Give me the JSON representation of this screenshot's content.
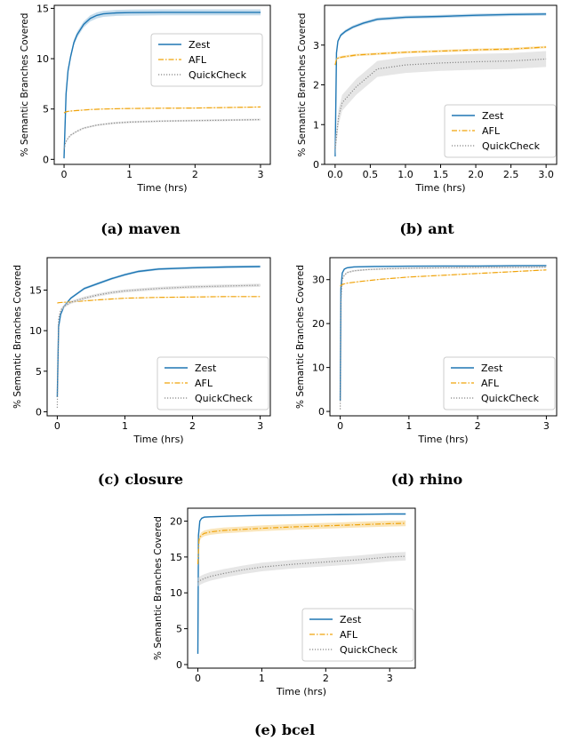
{
  "colors": {
    "zest": "#1f77b4",
    "afl": "#f0a30a",
    "quickcheck": "#888888",
    "band_zest": "#9ec4e0",
    "band_afl": "#f7d38a",
    "band_quickcheck": "#d6d6d6"
  },
  "chart_data": [
    {
      "type": "line",
      "caption": "(a) maven",
      "xlabel": "Time (hrs)",
      "ylabel": "% Semantic Branches Covered",
      "xlim": [
        -0.15,
        3.15
      ],
      "ylim": [
        -0.5,
        15.3
      ],
      "xticks": [
        0,
        1,
        2,
        3
      ],
      "xtick_labels": [
        "0",
        "1",
        "2",
        "3"
      ],
      "yticks": [
        0,
        5,
        10,
        15
      ],
      "ytick_labels": [
        "0",
        "5",
        "10",
        "15"
      ],
      "grid": false,
      "legend_position": "upper-right",
      "series": [
        {
          "name": "Zest",
          "style": "solid",
          "color_key": "zest",
          "x": [
            0,
            0.03,
            0.06,
            0.1,
            0.15,
            0.2,
            0.3,
            0.4,
            0.5,
            0.6,
            0.8,
            1.0,
            1.5,
            2.0,
            2.5,
            3.0
          ],
          "y": [
            0.1,
            6.5,
            8.8,
            10.2,
            11.6,
            12.4,
            13.4,
            14.0,
            14.3,
            14.45,
            14.55,
            14.58,
            14.6,
            14.6,
            14.6,
            14.6
          ],
          "band": 0.3
        },
        {
          "name": "AFL",
          "style": "dashdot",
          "color_key": "afl",
          "x": [
            0,
            0.02,
            0.05,
            0.1,
            0.2,
            0.4,
            0.6,
            1.0,
            1.5,
            2.0,
            2.5,
            3.0
          ],
          "y": [
            4.6,
            4.7,
            4.75,
            4.8,
            4.85,
            4.95,
            5.0,
            5.05,
            5.08,
            5.1,
            5.15,
            5.2
          ],
          "band": 0.05
        },
        {
          "name": "QuickCheck",
          "style": "dotted",
          "color_key": "quickcheck",
          "x": [
            0,
            0.02,
            0.05,
            0.1,
            0.2,
            0.3,
            0.5,
            0.75,
            1.0,
            1.5,
            2.0,
            2.5,
            3.0
          ],
          "y": [
            1.0,
            1.6,
            2.0,
            2.4,
            2.8,
            3.1,
            3.4,
            3.6,
            3.7,
            3.8,
            3.85,
            3.9,
            3.95
          ],
          "band": 0.1
        }
      ]
    },
    {
      "type": "line",
      "caption": "(b) ant",
      "xlabel": "Time (hrs)",
      "ylabel": "% Semantic Branches Covered",
      "xlim": [
        -0.15,
        3.15
      ],
      "ylim": [
        0,
        4.0
      ],
      "xticks": [
        0,
        0.5,
        1,
        1.5,
        2,
        2.5,
        3
      ],
      "xtick_labels": [
        "0.0",
        "0.5",
        "1.0",
        "1.5",
        "2.0",
        "2.5",
        "3.0"
      ],
      "yticks": [
        0,
        1,
        2,
        3
      ],
      "ytick_labels": [
        "0",
        "1",
        "2",
        "3"
      ],
      "grid": false,
      "legend_position": "lower-right",
      "series": [
        {
          "name": "Zest",
          "style": "solid",
          "color_key": "zest",
          "x": [
            0,
            0.02,
            0.04,
            0.08,
            0.15,
            0.25,
            0.4,
            0.6,
            1.0,
            1.5,
            2.0,
            2.5,
            3.0
          ],
          "y": [
            0.2,
            2.8,
            3.1,
            3.25,
            3.35,
            3.45,
            3.55,
            3.65,
            3.7,
            3.72,
            3.75,
            3.77,
            3.78
          ],
          "band": 0.04
        },
        {
          "name": "AFL",
          "style": "dashdot",
          "color_key": "afl",
          "x": [
            0,
            0.02,
            0.05,
            0.1,
            0.3,
            0.6,
            1.0,
            1.5,
            2.0,
            2.5,
            3.0
          ],
          "y": [
            2.5,
            2.65,
            2.68,
            2.7,
            2.75,
            2.78,
            2.82,
            2.85,
            2.88,
            2.9,
            2.95
          ],
          "band": 0.03
        },
        {
          "name": "QuickCheck",
          "style": "dotted",
          "color_key": "quickcheck",
          "x": [
            0,
            0.05,
            0.1,
            0.2,
            0.3,
            0.4,
            0.5,
            0.6,
            0.8,
            1.0,
            1.5,
            2.0,
            2.5,
            3.0
          ],
          "y": [
            0.4,
            1.2,
            1.55,
            1.75,
            1.95,
            2.1,
            2.25,
            2.4,
            2.45,
            2.5,
            2.55,
            2.58,
            2.6,
            2.65
          ],
          "band": 0.2
        }
      ]
    },
    {
      "type": "line",
      "caption": "(c) closure",
      "xlabel": "Time (hrs)",
      "ylabel": "% Semantic Branches Covered",
      "xlim": [
        -0.15,
        3.15
      ],
      "ylim": [
        -0.5,
        19
      ],
      "xticks": [
        0,
        1,
        2,
        3
      ],
      "xtick_labels": [
        "0",
        "1",
        "2",
        "3"
      ],
      "yticks": [
        0,
        5,
        10,
        15
      ],
      "ytick_labels": [
        "0",
        "5",
        "10",
        "15"
      ],
      "grid": false,
      "legend_position": "lower-right",
      "series": [
        {
          "name": "Zest",
          "style": "solid",
          "color_key": "zest",
          "x": [
            0,
            0.02,
            0.05,
            0.1,
            0.2,
            0.4,
            0.6,
            0.8,
            1.0,
            1.2,
            1.5,
            2.0,
            2.5,
            3.0
          ],
          "y": [
            1.8,
            10.5,
            12.0,
            13.0,
            14.0,
            15.2,
            15.8,
            16.4,
            16.9,
            17.3,
            17.6,
            17.75,
            17.85,
            17.9
          ],
          "band": 0.15
        },
        {
          "name": "AFL",
          "style": "dashdot",
          "color_key": "afl",
          "x": [
            0,
            0.02,
            0.1,
            0.3,
            0.6,
            1.0,
            1.5,
            2.0,
            2.5,
            3.0
          ],
          "y": [
            13.4,
            13.45,
            13.5,
            13.6,
            13.8,
            14.0,
            14.1,
            14.15,
            14.2,
            14.2
          ],
          "band": 0.05
        },
        {
          "name": "QuickCheck",
          "style": "dotted",
          "color_key": "quickcheck",
          "x": [
            0,
            0.02,
            0.05,
            0.1,
            0.2,
            0.4,
            0.6,
            0.8,
            1.0,
            1.5,
            2.0,
            2.5,
            3.0
          ],
          "y": [
            0.5,
            11.5,
            12.5,
            13.0,
            13.5,
            14.0,
            14.4,
            14.7,
            14.9,
            15.2,
            15.4,
            15.5,
            15.6
          ],
          "band": 0.2
        }
      ]
    },
    {
      "type": "line",
      "caption": "(d) rhino",
      "xlabel": "Time (hrs)",
      "ylabel": "% Semantic Branches Covered",
      "xlim": [
        -0.15,
        3.15
      ],
      "ylim": [
        -1,
        35
      ],
      "xticks": [
        0,
        1,
        2,
        3
      ],
      "xtick_labels": [
        "0",
        "1",
        "2",
        "3"
      ],
      "yticks": [
        0,
        10,
        20,
        30
      ],
      "ytick_labels": [
        "0",
        "10",
        "20",
        "30"
      ],
      "grid": false,
      "legend_position": "lower-right",
      "series": [
        {
          "name": "Zest",
          "style": "solid",
          "color_key": "zest",
          "x": [
            0,
            0.01,
            0.03,
            0.06,
            0.1,
            0.2,
            0.5,
            1.0,
            1.5,
            2.0,
            2.5,
            3.0
          ],
          "y": [
            2.5,
            28.0,
            31.5,
            32.4,
            32.7,
            32.9,
            33.0,
            33.05,
            33.1,
            33.1,
            33.15,
            33.2
          ],
          "band": 0.15
        },
        {
          "name": "AFL",
          "style": "dashdot",
          "color_key": "afl",
          "x": [
            0,
            0.02,
            0.05,
            0.1,
            0.3,
            0.6,
            1.0,
            1.5,
            2.0,
            2.5,
            3.0
          ],
          "y": [
            28.5,
            28.8,
            29.0,
            29.2,
            29.6,
            30.1,
            30.6,
            31.0,
            31.4,
            31.8,
            32.2
          ],
          "band": 0.1
        },
        {
          "name": "QuickCheck",
          "style": "dotted",
          "color_key": "quickcheck",
          "x": [
            0,
            0.01,
            0.03,
            0.06,
            0.1,
            0.2,
            0.4,
            0.7,
            1.0,
            1.5,
            2.0,
            2.5,
            3.0
          ],
          "y": [
            0.5,
            25.0,
            30.0,
            31.0,
            31.6,
            32.0,
            32.3,
            32.5,
            32.6,
            32.7,
            32.75,
            32.8,
            32.85
          ],
          "band": 0.2
        }
      ]
    },
    {
      "type": "line",
      "caption": "(e) bcel",
      "xlabel": "Time (hrs)",
      "ylabel": "% Semantic Branches Covered",
      "xlim": [
        -0.16,
        3.4
      ],
      "ylim": [
        -0.5,
        21.8
      ],
      "xticks": [
        0,
        1,
        2,
        3
      ],
      "xtick_labels": [
        "0",
        "1",
        "2",
        "3"
      ],
      "yticks": [
        0,
        5,
        10,
        15,
        20
      ],
      "ytick_labels": [
        "0",
        "5",
        "10",
        "15",
        "20"
      ],
      "grid": false,
      "legend_position": "lower-right",
      "series": [
        {
          "name": "Zest",
          "style": "solid",
          "color_key": "zest",
          "x": [
            0,
            0.01,
            0.03,
            0.06,
            0.1,
            0.2,
            0.5,
            1.0,
            1.5,
            2.0,
            2.5,
            3.0,
            3.25
          ],
          "y": [
            1.5,
            18.0,
            20.0,
            20.4,
            20.55,
            20.6,
            20.7,
            20.8,
            20.85,
            20.9,
            20.95,
            21.0,
            21.0
          ],
          "band": 0.1
        },
        {
          "name": "AFL",
          "style": "dashdot",
          "color_key": "afl",
          "x": [
            0,
            0.02,
            0.05,
            0.1,
            0.2,
            0.4,
            0.7,
            1.0,
            1.5,
            2.0,
            2.5,
            3.0,
            3.25
          ],
          "y": [
            14.0,
            17.5,
            18.0,
            18.3,
            18.5,
            18.7,
            18.85,
            19.0,
            19.2,
            19.35,
            19.5,
            19.65,
            19.7
          ],
          "band": 0.4
        },
        {
          "name": "QuickCheck",
          "style": "dotted",
          "color_key": "quickcheck",
          "x": [
            0,
            0.05,
            0.1,
            0.2,
            0.4,
            0.7,
            1.0,
            1.5,
            2.0,
            2.5,
            3.0,
            3.25
          ],
          "y": [
            11.5,
            11.8,
            12.0,
            12.3,
            12.7,
            13.2,
            13.6,
            14.0,
            14.3,
            14.6,
            15.0,
            15.1
          ],
          "band": 0.6
        }
      ]
    }
  ]
}
